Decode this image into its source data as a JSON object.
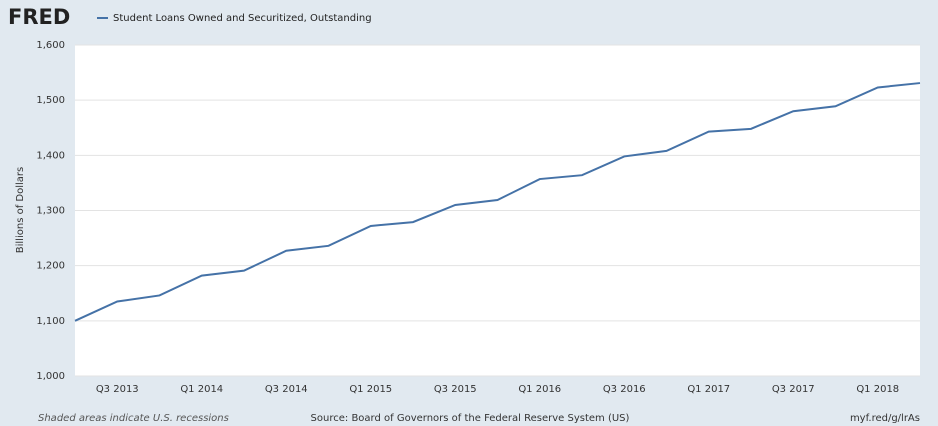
{
  "chart_data": {
    "type": "line",
    "logo": "FRED",
    "ylabel": "Billions of Dollars",
    "note": "Shaded areas indicate U.S. recessions",
    "source": "Source: Board of Governors of the Federal Reserve System (US)",
    "link": "myf.red/g/lrAs",
    "categories": [
      null,
      "Q3 2013",
      null,
      "Q1 2014",
      null,
      "Q3 2014",
      null,
      "Q1 2015",
      null,
      "Q3 2015",
      null,
      "Q1 2016",
      null,
      "Q3 2016",
      null,
      "Q1 2017",
      null,
      "Q3 2017",
      null,
      "Q1 2018",
      null
    ],
    "series": [
      {
        "name": "Student Loans Owned and Securitized, Outstanding",
        "color": "#4572a7",
        "values": [
          1100,
          1135,
          1146,
          1182,
          1191,
          1227,
          1236,
          1272,
          1279,
          1310,
          1319,
          1357,
          1364,
          1398,
          1408,
          1443,
          1448,
          1480,
          1489,
          1523,
          1531
        ]
      }
    ],
    "ylim": [
      1000,
      1600
    ],
    "yticks": [
      {
        "value": 1000,
        "label": "1,000"
      },
      {
        "value": 1100,
        "label": "1,100"
      },
      {
        "value": 1200,
        "label": "1,200"
      },
      {
        "value": 1300,
        "label": "1,300"
      },
      {
        "value": 1400,
        "label": "1,400"
      },
      {
        "value": 1500,
        "label": "1,500"
      },
      {
        "value": 1600,
        "label": "1,600"
      }
    ],
    "grid": true
  }
}
